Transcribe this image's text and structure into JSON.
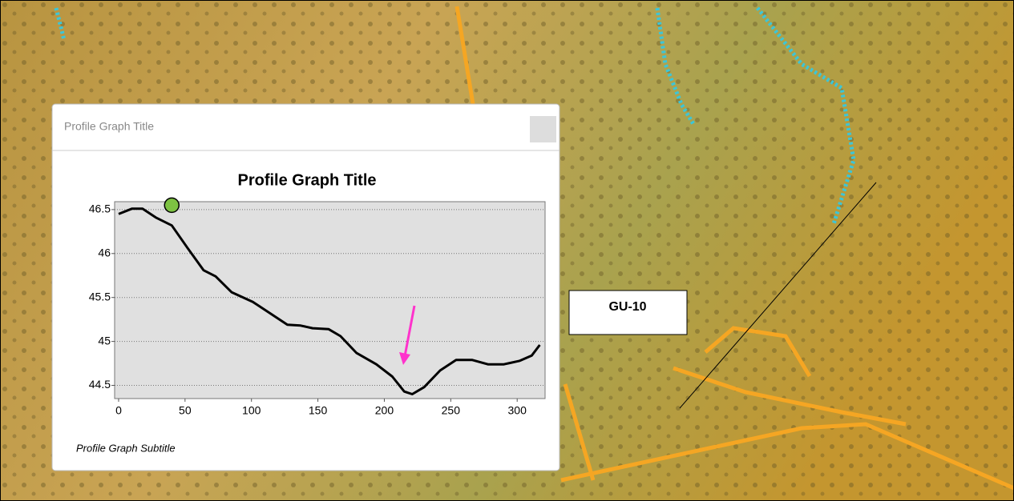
{
  "window": {
    "title": "Profile Graph Title"
  },
  "map": {
    "label": "GU-10"
  },
  "chart_data": {
    "type": "line",
    "title": "Profile Graph Title",
    "subtitle": "Profile Graph Subtitle",
    "x": [
      0,
      10,
      18,
      28,
      40,
      52,
      64,
      73,
      85,
      101,
      113,
      127,
      137,
      146,
      158,
      167,
      179,
      194,
      206,
      215,
      221,
      230,
      242,
      254,
      266,
      278,
      290,
      302,
      311,
      317
    ],
    "values": [
      46.45,
      46.51,
      46.51,
      46.41,
      46.32,
      46.06,
      45.81,
      45.74,
      45.56,
      45.45,
      45.33,
      45.19,
      45.18,
      45.15,
      45.14,
      45.06,
      44.87,
      44.74,
      44.6,
      44.43,
      44.4,
      44.48,
      44.67,
      44.79,
      44.79,
      44.74,
      44.74,
      44.78,
      44.84,
      44.96
    ],
    "color": "#000000",
    "xlim": [
      -3,
      321
    ],
    "ylim": [
      44.35,
      46.59
    ],
    "xticks": [
      0,
      50,
      100,
      150,
      200,
      250,
      300
    ],
    "yticks": [
      44.5,
      45,
      45.5,
      46,
      46.5
    ],
    "grid": true,
    "marker": {
      "x": 40,
      "y": 46.55,
      "color": "#7dc242"
    }
  }
}
